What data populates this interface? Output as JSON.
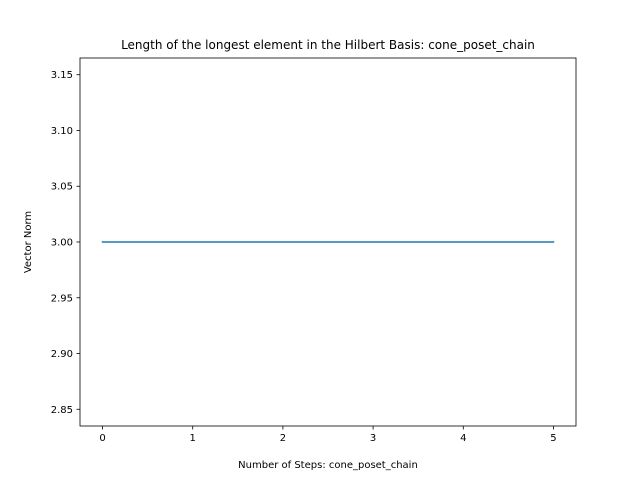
{
  "chart_data": {
    "type": "line",
    "title": "Length of the longest element in the Hilbert Basis: cone_poset_chain",
    "xlabel": "Number of Steps: cone_poset_chain",
    "ylabel": "Vector Norm",
    "xlim": [
      -0.25,
      5.25
    ],
    "ylim": [
      2.835,
      3.165
    ],
    "x_ticks": [
      0,
      1,
      2,
      3,
      4,
      5
    ],
    "y_ticks": [
      2.85,
      2.9,
      2.95,
      3.0,
      3.05,
      3.1,
      3.15
    ],
    "x_tick_labels": [
      "0",
      "1",
      "2",
      "3",
      "4",
      "5"
    ],
    "y_tick_labels": [
      "2.85",
      "2.90",
      "2.95",
      "3.00",
      "3.05",
      "3.10",
      "3.15"
    ],
    "grid": false,
    "series": [
      {
        "color": "#1f77b4",
        "x": [
          0,
          1,
          2,
          3,
          4,
          5
        ],
        "y": [
          3,
          3,
          3,
          3,
          3,
          3
        ]
      }
    ]
  }
}
